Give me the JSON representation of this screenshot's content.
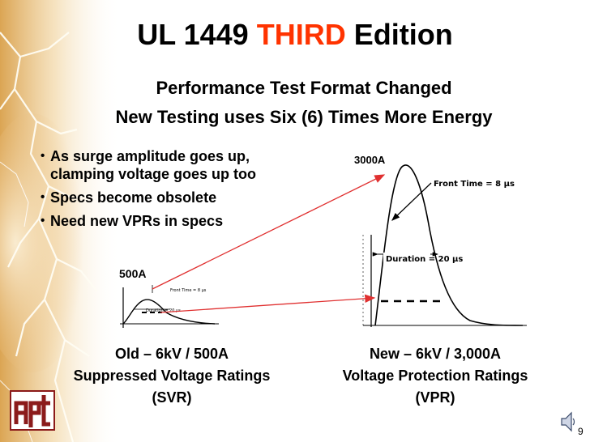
{
  "title": {
    "prefix": "UL 1449 ",
    "accent": "THIRD",
    "suffix": " Edition"
  },
  "subtitle": {
    "line1": "Performance Test Format Changed",
    "line2": "New Testing uses Six (6) Times More Energy"
  },
  "bullets": [
    "As surge amplitude goes up,",
    "clamping voltage goes up too",
    "Specs become obsolete",
    "Need new VPRs in specs"
  ],
  "old_graph": {
    "peak_label": "500A",
    "front_time_label": "Front Time = 8 µs",
    "duration_label": "Duration = 20 µs"
  },
  "new_graph": {
    "peak_label": "3000A",
    "front_time_label": "Front Time = 8 µs",
    "duration_label": "Duration = 20 µs"
  },
  "captions": {
    "old": {
      "line1": "Old – 6kV / 500A",
      "line2": "Suppressed Voltage Ratings",
      "line3": "(SVR)"
    },
    "new": {
      "line1": "New – 6kV / 3,000A",
      "line2": "Voltage Protection Ratings",
      "line3": "(VPR)"
    }
  },
  "page_number": "9",
  "colors": {
    "accent": "#ff3300",
    "arrow": "#e03030"
  },
  "icons": {
    "logo": "apt-logo",
    "sound": "speaker-icon"
  }
}
